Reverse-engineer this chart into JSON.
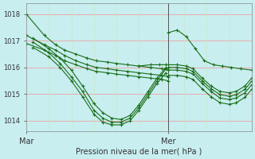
{
  "bg_color": "#c8eef0",
  "grid_color_h": "#f0a0a0",
  "grid_color_v": "#c8e8c8",
  "line_color": "#1a6e1a",
  "marker": "+",
  "markersize": 3,
  "linewidth": 0.8,
  "ylabel_ticks": [
    1014,
    1015,
    1016,
    1017,
    1018
  ],
  "xlabel_left": "Mar",
  "xlabel_right": "Mer",
  "xlabel_label": "Pression niveau de la mer( hPa )",
  "xlim": [
    0,
    100
  ],
  "ylim": [
    1013.6,
    1018.4
  ],
  "mer_x": 63,
  "series_before": [
    {
      "x": [
        0,
        8,
        13,
        17,
        22,
        27,
        31,
        36,
        40,
        45,
        50,
        55,
        60,
        63
      ],
      "y": [
        1018.0,
        1017.2,
        1016.85,
        1016.65,
        1016.5,
        1016.35,
        1016.25,
        1016.2,
        1016.15,
        1016.1,
        1016.05,
        1016.0,
        1015.95,
        1015.9
      ]
    },
    {
      "x": [
        0,
        8,
        13,
        17,
        22,
        27,
        31,
        36,
        40,
        45,
        50,
        55,
        60,
        63
      ],
      "y": [
        1017.2,
        1016.85,
        1016.65,
        1016.45,
        1016.25,
        1016.1,
        1016.0,
        1015.95,
        1015.9,
        1015.85,
        1015.8,
        1015.75,
        1015.7,
        1015.65
      ]
    },
    {
      "x": [
        0,
        8,
        13,
        17,
        22,
        27,
        31,
        36,
        40,
        45,
        50,
        55,
        60,
        63
      ],
      "y": [
        1016.9,
        1016.65,
        1016.45,
        1016.25,
        1016.1,
        1015.95,
        1015.85,
        1015.8,
        1015.75,
        1015.7,
        1015.65,
        1015.6,
        1015.55,
        1015.5
      ]
    },
    {
      "x": [
        3,
        10,
        15,
        20,
        25,
        30,
        34,
        38,
        42,
        46,
        50,
        54,
        58,
        62
      ],
      "y": [
        1017.1,
        1016.7,
        1016.35,
        1015.9,
        1015.3,
        1014.65,
        1014.3,
        1014.1,
        1014.05,
        1014.2,
        1014.6,
        1015.1,
        1015.6,
        1016.0
      ]
    },
    {
      "x": [
        3,
        10,
        15,
        20,
        25,
        30,
        34,
        38,
        42,
        46,
        50,
        54,
        58,
        62
      ],
      "y": [
        1016.75,
        1016.4,
        1016.0,
        1015.5,
        1014.9,
        1014.25,
        1013.95,
        1013.85,
        1013.85,
        1014.0,
        1014.4,
        1014.9,
        1015.4,
        1015.8
      ]
    },
    {
      "x": [
        3,
        10,
        15,
        20,
        25,
        30,
        34,
        38,
        42,
        46,
        50,
        54,
        58,
        62
      ],
      "y": [
        1016.95,
        1016.55,
        1016.15,
        1015.65,
        1015.1,
        1014.4,
        1014.1,
        1013.95,
        1013.95,
        1014.1,
        1014.5,
        1015.0,
        1015.5,
        1015.95
      ]
    },
    {
      "x": [
        50,
        55,
        59,
        62
      ],
      "y": [
        1016.05,
        1016.1,
        1016.1,
        1016.1
      ]
    }
  ],
  "series_after": [
    {
      "x": [
        63,
        67,
        71,
        75,
        79,
        83,
        87,
        91,
        95,
        100
      ],
      "y": [
        1017.3,
        1017.4,
        1017.15,
        1016.7,
        1016.25,
        1016.1,
        1016.05,
        1016.0,
        1015.95,
        1015.9
      ]
    },
    {
      "x": [
        63,
        67,
        71,
        74,
        78,
        82,
        86,
        90,
        93,
        97,
        100
      ],
      "y": [
        1016.1,
        1016.1,
        1016.05,
        1015.95,
        1015.6,
        1015.3,
        1015.1,
        1015.05,
        1015.1,
        1015.3,
        1015.6
      ]
    },
    {
      "x": [
        63,
        67,
        71,
        74,
        78,
        82,
        86,
        90,
        93,
        97,
        100
      ],
      "y": [
        1015.9,
        1015.9,
        1015.85,
        1015.75,
        1015.4,
        1015.1,
        1014.85,
        1014.8,
        1014.85,
        1015.05,
        1015.35
      ]
    },
    {
      "x": [
        63,
        67,
        71,
        74,
        78,
        82,
        86,
        90,
        93,
        97,
        100
      ],
      "y": [
        1016.0,
        1016.0,
        1015.95,
        1015.85,
        1015.5,
        1015.2,
        1014.98,
        1014.92,
        1014.97,
        1015.18,
        1015.48
      ]
    },
    {
      "x": [
        63,
        67,
        71,
        74,
        78,
        82,
        86,
        90,
        93,
        97,
        100
      ],
      "y": [
        1015.7,
        1015.7,
        1015.65,
        1015.55,
        1015.2,
        1014.9,
        1014.68,
        1014.62,
        1014.67,
        1014.88,
        1015.18
      ]
    }
  ]
}
